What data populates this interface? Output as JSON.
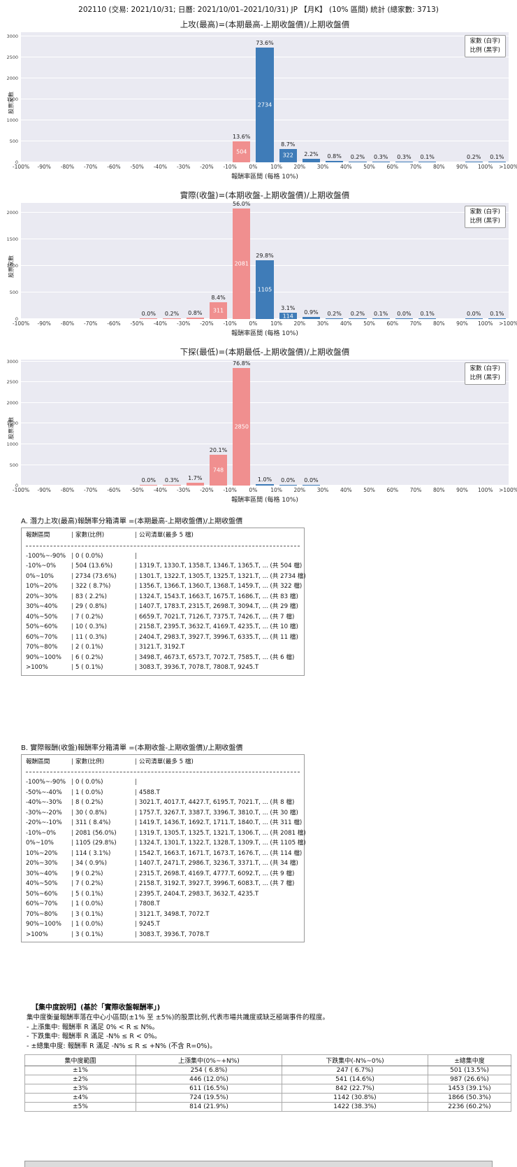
{
  "page": {
    "title": "202110 (交易: 2021/10/31; 日曆: 2021/10/01–2021/10/31) JP 【月K】 (10% 區間) 統計 (總家數: 3713)"
  },
  "legend": {
    "line1": "家數 (白字)",
    "line2": "比例 (黑字)"
  },
  "colors": {
    "up_bar": "#3f7cb8",
    "down_bar": "#f08f8f",
    "plot_bg": "#eaeaf2"
  },
  "axis": {
    "xticks": [
      "-100%",
      "-90%",
      "-80%",
      "-70%",
      "-60%",
      "-50%",
      "-40%",
      "-30%",
      "-20%",
      "-10%",
      "0%",
      "10%",
      "20%",
      "30%",
      "40%",
      "50%",
      "60%",
      "70%",
      "80%",
      "90%",
      "100%",
      ">100%"
    ]
  },
  "chart_data": [
    {
      "type": "bar",
      "title": "上攻(最高)=(本期最高-上期收盤價)/上期收盤價",
      "xlabel": "報酬率區間 (每格 10%)",
      "ylabel": "股票家數",
      "categories": [
        "-100%~-90%",
        "-90%~-80%",
        "-80%~-70%",
        "-70%~-60%",
        "-60%~-50%",
        "-50%~-40%",
        "-40%~-30%",
        "-30%~-20%",
        "-20%~-10%",
        "-10%~0%",
        "0%~10%",
        "10%~20%",
        "20%~30%",
        "30%~40%",
        "40%~50%",
        "50%~60%",
        "60%~70%",
        "70%~80%",
        "80%~90%",
        "90%~100%",
        ">100%"
      ],
      "values": [
        0,
        0,
        0,
        0,
        0,
        0,
        0,
        0,
        0,
        504,
        2734,
        322,
        83,
        29,
        7,
        10,
        11,
        2,
        0,
        6,
        5
      ],
      "pct_labels": [
        "",
        "",
        "",
        "",
        "",
        "",
        "",
        "",
        "",
        "13.6%",
        "73.6%",
        "8.7%",
        "2.2%",
        "0.8%",
        "0.2%",
        "0.3%",
        "0.3%",
        "0.1%",
        "",
        "0.2%",
        "0.1%"
      ],
      "ylim": [
        0,
        3100
      ],
      "yticks": [
        0,
        500,
        1000,
        1500,
        2000,
        2500,
        3000
      ],
      "first_positive_bin": 10,
      "grid": "on",
      "legend_position": "upper-right"
    },
    {
      "type": "bar",
      "title": "實際(收盤)=(本期收盤-上期收盤價)/上期收盤價",
      "xlabel": "報酬率區間 (每格 10%)",
      "ylabel": "股票家數",
      "categories": [
        "-100%~-90%",
        "-90%~-80%",
        "-80%~-70%",
        "-70%~-60%",
        "-60%~-50%",
        "-50%~-40%",
        "-40%~-30%",
        "-30%~-20%",
        "-20%~-10%",
        "-10%~0%",
        "0%~10%",
        "10%~20%",
        "20%~30%",
        "30%~40%",
        "40%~50%",
        "50%~60%",
        "60%~70%",
        "70%~80%",
        "80%~90%",
        "90%~100%",
        ">100%"
      ],
      "values": [
        0,
        0,
        0,
        0,
        0,
        1,
        8,
        30,
        311,
        2081,
        1105,
        114,
        34,
        9,
        7,
        5,
        1,
        3,
        0,
        1,
        3
      ],
      "pct_labels": [
        "",
        "",
        "",
        "",
        "",
        "0.0%",
        "0.2%",
        "0.8%",
        "8.4%",
        "56.0%",
        "29.8%",
        "3.1%",
        "0.9%",
        "0.2%",
        "0.2%",
        "0.1%",
        "0.0%",
        "0.1%",
        "",
        "0.0%",
        "0.1%"
      ],
      "ylim": [
        0,
        2185
      ],
      "yticks": [
        0,
        500,
        1000,
        1500,
        2000
      ],
      "first_positive_bin": 10,
      "grid": "on",
      "legend_position": "upper-right"
    },
    {
      "type": "bar",
      "title": "下探(最低)=(本期最低-上期收盤價)/上期收盤價",
      "xlabel": "報酬率區間 (每格 10%)",
      "ylabel": "股票家數",
      "categories": [
        "-100%~-90%",
        "-90%~-80%",
        "-80%~-70%",
        "-70%~-60%",
        "-60%~-50%",
        "-50%~-40%",
        "-40%~-30%",
        "-30%~-20%",
        "-20%~-10%",
        "-10%~0%",
        "0%~10%",
        "10%~20%",
        "20%~30%",
        "30%~40%",
        "40%~50%",
        "50%~60%",
        "60%~70%",
        "70%~80%",
        "80%~90%",
        "90%~100%",
        ">100%"
      ],
      "values": [
        0,
        0,
        0,
        0,
        0,
        1,
        11,
        63,
        748,
        2850,
        37,
        1,
        1,
        0,
        0,
        0,
        0,
        0,
        0,
        0,
        0
      ],
      "pct_labels": [
        "",
        "",
        "",
        "",
        "",
        "0.0%",
        "0.3%",
        "1.7%",
        "20.1%",
        "76.8%",
        "1.0%",
        "0.0%",
        "0.0%",
        "",
        "",
        "",
        "",
        "",
        "",
        "",
        ""
      ],
      "ylim": [
        0,
        3050
      ],
      "yticks": [
        0,
        500,
        1000,
        1500,
        2000,
        2500,
        3000
      ],
      "first_positive_bin": 10,
      "grid": "on",
      "legend_position": "upper-right"
    }
  ],
  "section_a": {
    "title": "A. 潛力上攻(最高)報酬率分箱清單 =(本期最高-上期收盤價)/上期收盤價",
    "col_headers": {
      "range": "報酬區間",
      "count": "家數(比例)",
      "companies": "公司清單(最多 5 檔)"
    },
    "rows": [
      {
        "range": "-100%~-90%",
        "count": "0 ( 0.0%)",
        "companies": ""
      },
      {
        "range": "-10%~0%",
        "count": "504 (13.6%)",
        "companies": "1319.T, 1330.T, 1358.T, 1346.T, 1365.T, ... (共 504 檔)"
      },
      {
        "range": "0%~10%",
        "count": "2734 (73.6%)",
        "companies": "1301.T, 1322.T, 1305.T, 1325.T, 1321.T, ... (共 2734 檔)"
      },
      {
        "range": "10%~20%",
        "count": "322 ( 8.7%)",
        "companies": "1356.T, 1366.T, 1360.T, 1368.T, 1459.T, ... (共 322 檔)"
      },
      {
        "range": "20%~30%",
        "count": "83 ( 2.2%)",
        "companies": "1324.T, 1543.T, 1663.T, 1675.T, 1686.T, ... (共 83 檔)"
      },
      {
        "range": "30%~40%",
        "count": "29 ( 0.8%)",
        "companies": "1407.T, 1783.T, 2315.T, 2698.T, 3094.T, ... (共 29 檔)"
      },
      {
        "range": "40%~50%",
        "count": "7 ( 0.2%)",
        "companies": "6659.T, 7021.T, 7126.T, 7375.T, 7426.T, ... (共 7 檔)"
      },
      {
        "range": "50%~60%",
        "count": "10 ( 0.3%)",
        "companies": "2158.T, 2395.T, 3632.T, 4169.T, 4235.T, ... (共 10 檔)"
      },
      {
        "range": "60%~70%",
        "count": "11 ( 0.3%)",
        "companies": "2404.T, 2983.T, 3927.T, 3996.T, 6335.T, ... (共 11 檔)"
      },
      {
        "range": "70%~80%",
        "count": "2 ( 0.1%)",
        "companies": "3121.T, 3192.T"
      },
      {
        "range": "90%~100%",
        "count": "6 ( 0.2%)",
        "companies": "3498.T, 4673.T, 6573.T, 7072.T, 7585.T, ... (共 6 檔)"
      },
      {
        "range": ">100%",
        "count": "5 ( 0.1%)",
        "companies": "3083.T, 3936.T, 7078.T, 7808.T, 9245.T"
      }
    ]
  },
  "section_b": {
    "title": "B. 實際報酬(收盤)報酬率分箱清單 =(本期收盤-上期收盤價)/上期收盤價",
    "col_headers": {
      "range": "報酬區間",
      "count": "家數(比例)",
      "companies": "公司清單(最多 5 檔)"
    },
    "rows": [
      {
        "range": "-100%~-90%",
        "count": "0 ( 0.0%)",
        "companies": ""
      },
      {
        "range": "-50%~-40%",
        "count": "1 ( 0.0%)",
        "companies": "4588.T"
      },
      {
        "range": "-40%~-30%",
        "count": "8 ( 0.2%)",
        "companies": "3021.T, 4017.T, 4427.T, 6195.T, 7021.T, ... (共 8 檔)"
      },
      {
        "range": "-30%~-20%",
        "count": "30 ( 0.8%)",
        "companies": "1757.T, 3267.T, 3387.T, 3396.T, 3810.T, ... (共 30 檔)"
      },
      {
        "range": "-20%~-10%",
        "count": "311 ( 8.4%)",
        "companies": "1419.T, 1436.T, 1692.T, 1711.T, 1840.T, ... (共 311 檔)"
      },
      {
        "range": "-10%~0%",
        "count": "2081 (56.0%)",
        "companies": "1319.T, 1305.T, 1325.T, 1321.T, 1306.T, ... (共 2081 檔)"
      },
      {
        "range": "0%~10%",
        "count": "1105 (29.8%)",
        "companies": "1324.T, 1301.T, 1322.T, 1328.T, 1309.T, ... (共 1105 檔)"
      },
      {
        "range": "10%~20%",
        "count": "114 ( 3.1%)",
        "companies": "1542.T, 1663.T, 1671.T, 1673.T, 1676.T, ... (共 114 檔)"
      },
      {
        "range": "20%~30%",
        "count": "34 ( 0.9%)",
        "companies": "1407.T, 2471.T, 2986.T, 3236.T, 3371.T, ... (共 34 檔)"
      },
      {
        "range": "30%~40%",
        "count": "9 ( 0.2%)",
        "companies": "2315.T, 2698.T, 4169.T, 4777.T, 6092.T, ... (共 9 檔)"
      },
      {
        "range": "40%~50%",
        "count": "7 ( 0.2%)",
        "companies": "2158.T, 3192.T, 3927.T, 3996.T, 6083.T, ... (共 7 檔)"
      },
      {
        "range": "50%~60%",
        "count": "5 ( 0.1%)",
        "companies": "2395.T, 2404.T, 2983.T, 3632.T, 4235.T"
      },
      {
        "range": "60%~70%",
        "count": "1 ( 0.0%)",
        "companies": "7808.T"
      },
      {
        "range": "70%~80%",
        "count": "3 ( 0.1%)",
        "companies": "3121.T, 3498.T, 7072.T"
      },
      {
        "range": "90%~100%",
        "count": "1 ( 0.0%)",
        "companies": "9245.T"
      },
      {
        "range": ">100%",
        "count": "3 ( 0.1%)",
        "companies": "3083.T, 3936.T, 7078.T"
      }
    ]
  },
  "concentration": {
    "heading": "【集中度說明】(基於「實際收盤報酬率」)",
    "desc_lines": [
      "集中度衡量報酬率落在中心小區間(±1% 至 ±5%)的股票比例,代表市場共識度或缺乏極端事件的程度。",
      "- 上漲集中: 報酬率 R 滿足 0% < R ≤ N%。",
      "- 下跌集中: 報酬率 R 滿足 -N% ≤ R < 0%。",
      "- ±總集中度: 報酬率 R 滿足 -N% ≤ R ≤ +N% (不含 R=0%)。"
    ],
    "table": {
      "headers": [
        "集中度範圍",
        "上漲集中(0%~+N%)",
        "下跌集中(-N%~0%)",
        "±總集中度"
      ],
      "rows": [
        [
          "±1%",
          "254 ( 6.8%)",
          "247 ( 6.7%)",
          "501 (13.5%)"
        ],
        [
          "±2%",
          "446 (12.0%)",
          "541 (14.6%)",
          "987 (26.6%)"
        ],
        [
          "±3%",
          "611 (16.5%)",
          "842 (22.7%)",
          "1453 (39.1%)"
        ],
        [
          "±4%",
          "724 (19.5%)",
          "1142 (30.8%)",
          "1866 (50.3%)"
        ],
        [
          "±5%",
          "814 (21.9%)",
          "1422 (38.3%)",
          "2236 (60.2%)"
        ]
      ]
    }
  }
}
